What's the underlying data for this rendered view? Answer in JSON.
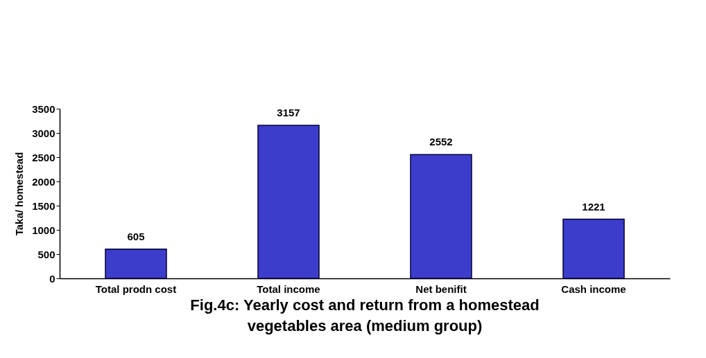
{
  "chart_data": {
    "type": "bar",
    "title": [
      "Fig.4c: Yearly cost and return from a homestead",
      "vegetables area (medium group)"
    ],
    "ylabel": "Taka/ homestead",
    "categories": [
      "Total prodn cost",
      "Total income",
      "Net benifit",
      "Cash income"
    ],
    "values": [
      605,
      3157,
      2552,
      1221
    ],
    "color": "#3d3dcc",
    "ylim": [
      0,
      3500
    ],
    "yticks": [
      0,
      500,
      1000,
      1500,
      2000,
      2500,
      3000,
      3500
    ],
    "grid": false,
    "data_labels": true
  }
}
